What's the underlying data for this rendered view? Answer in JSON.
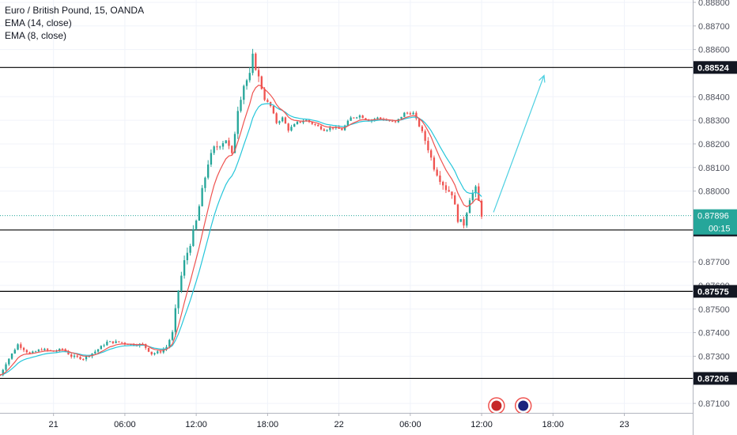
{
  "legend": {
    "symbol": "Euro / British Pound, 15, OANDA",
    "ema14": "EMA (14, close)",
    "ema8": "EMA (8, close)"
  },
  "colors": {
    "up": "#26a69a",
    "down": "#ef5350",
    "ema14": "#26c6da",
    "ema8": "#ef5350",
    "level_line": "#000000",
    "current_price": "#26a69a",
    "projection": "#4dd0e1"
  },
  "chart_data": {
    "type": "candlestick",
    "y_axis_ticks": [
      "0.88800",
      "0.88700",
      "0.88600",
      "0.88400",
      "0.88300",
      "0.88200",
      "0.88100",
      "0.88000",
      "0.87700",
      "0.87600",
      "0.87500",
      "0.87400",
      "0.87300",
      "0.87100"
    ],
    "x_axis_ticks": [
      {
        "label": "21",
        "t": 0
      },
      {
        "label": "06:00",
        "t": 24
      },
      {
        "label": "12:00",
        "t": 48
      },
      {
        "label": "18:00",
        "t": 72
      },
      {
        "label": "22",
        "t": 96
      },
      {
        "label": "06:00",
        "t": 120
      },
      {
        "label": "12:00",
        "t": 144
      },
      {
        "label": "18:00",
        "t": 168
      },
      {
        "label": "23",
        "t": 192
      }
    ],
    "y_range": [
      0.8706,
      0.8881
    ],
    "x_range": [
      -18,
      215
    ],
    "levels": [
      {
        "label": "0.88524",
        "price": 0.88524
      },
      {
        "label": "0.87835",
        "price": 0.87835
      },
      {
        "label": "0.87575",
        "price": 0.87575
      },
      {
        "label": "0.87206",
        "price": 0.87206
      }
    ],
    "current_price": {
      "label": "0.87896",
      "price": 0.87896,
      "countdown": "00:15"
    },
    "projection": {
      "from": {
        "t": 148,
        "price": 0.8791
      },
      "to": {
        "t": 165,
        "price": 0.8849
      }
    },
    "series": [
      {
        "name": "EMA (14, close)",
        "kind": "ema",
        "period": 14
      },
      {
        "name": "EMA (8, close)",
        "kind": "ema",
        "period": 8
      }
    ],
    "anchors": [
      [
        -18,
        0.8722
      ],
      [
        -16,
        0.8727
      ],
      [
        -14,
        0.8731
      ],
      [
        -12,
        0.8735
      ],
      [
        -10,
        0.8733
      ],
      [
        -8,
        0.8731
      ],
      [
        -4,
        0.8733
      ],
      [
        0,
        0.8732
      ],
      [
        3,
        0.8733
      ],
      [
        6,
        0.873
      ],
      [
        10,
        0.8729
      ],
      [
        14,
        0.8732
      ],
      [
        18,
        0.8736
      ],
      [
        22,
        0.8736
      ],
      [
        26,
        0.8735
      ],
      [
        30,
        0.8735
      ],
      [
        33,
        0.8731
      ],
      [
        36,
        0.8732
      ],
      [
        38,
        0.8734
      ],
      [
        40,
        0.874
      ],
      [
        42,
        0.8758
      ],
      [
        44,
        0.877
      ],
      [
        46,
        0.8778
      ],
      [
        48,
        0.8787
      ],
      [
        50,
        0.88
      ],
      [
        52,
        0.8812
      ],
      [
        54,
        0.8818
      ],
      [
        56,
        0.882
      ],
      [
        58,
        0.8822
      ],
      [
        60,
        0.8815
      ],
      [
        62,
        0.8835
      ],
      [
        64,
        0.8845
      ],
      [
        66,
        0.8849
      ],
      [
        67,
        0.8857
      ],
      [
        69,
        0.8848
      ],
      [
        71,
        0.8839
      ],
      [
        73,
        0.8836
      ],
      [
        75,
        0.8829
      ],
      [
        77,
        0.8831
      ],
      [
        79,
        0.8826
      ],
      [
        82,
        0.8829
      ],
      [
        85,
        0.883
      ],
      [
        88,
        0.8828
      ],
      [
        91,
        0.8826
      ],
      [
        94,
        0.8827
      ],
      [
        97,
        0.8826
      ],
      [
        100,
        0.8831
      ],
      [
        103,
        0.8832
      ],
      [
        106,
        0.883
      ],
      [
        109,
        0.8831
      ],
      [
        112,
        0.883
      ],
      [
        115,
        0.8829
      ],
      [
        118,
        0.8833
      ],
      [
        121,
        0.8833
      ],
      [
        124,
        0.8825
      ],
      [
        126,
        0.8818
      ],
      [
        128,
        0.881
      ],
      [
        130,
        0.8805
      ],
      [
        132,
        0.8801
      ],
      [
        134,
        0.8799
      ],
      [
        136,
        0.8788
      ],
      [
        138,
        0.8786
      ],
      [
        140,
        0.8797
      ],
      [
        142,
        0.8801
      ],
      [
        144,
        0.879
      ]
    ]
  }
}
